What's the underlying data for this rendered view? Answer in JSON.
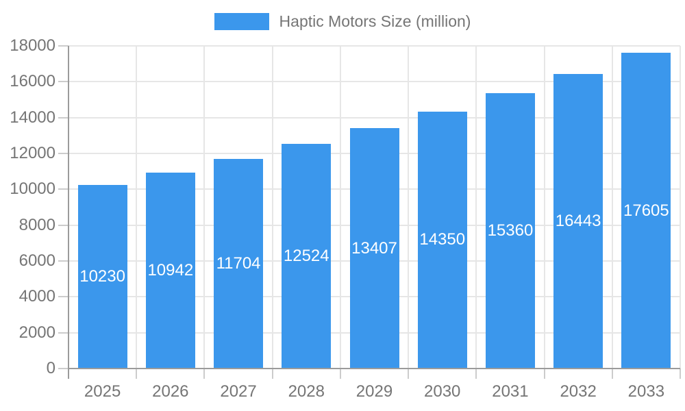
{
  "legend": {
    "label": "Haptic Motors Size (million)"
  },
  "colors": {
    "bar": "#3B97EC",
    "grid": "#E6E6E6",
    "tick": "#CCCCCC",
    "axis": "#9B9B9B",
    "text": "#757575",
    "bar_label": "#FFFFFF",
    "background": "#FFFFFF"
  },
  "chart_data": {
    "type": "bar",
    "title": "",
    "legend_entries": [
      "Haptic Motors Size (million)"
    ],
    "legend_position": "top",
    "categories": [
      "2025",
      "2026",
      "2027",
      "2028",
      "2029",
      "2030",
      "2031",
      "2032",
      "2033"
    ],
    "values": [
      10230,
      10942,
      11704,
      12524,
      13407,
      14350,
      15360,
      16443,
      17605
    ],
    "data_labels": [
      "10230",
      "10942",
      "11704",
      "12524",
      "13407",
      "14350",
      "15360",
      "16443",
      "17605"
    ],
    "data_label_position": "inside-middle",
    "xlabel": "",
    "ylabel": "",
    "ylim": [
      0,
      18000
    ],
    "ytick_step": 2000,
    "yticks": [
      "0",
      "2000",
      "4000",
      "6000",
      "8000",
      "10000",
      "12000",
      "14000",
      "16000",
      "18000"
    ],
    "grid": "horizontal and vertical light gray"
  }
}
